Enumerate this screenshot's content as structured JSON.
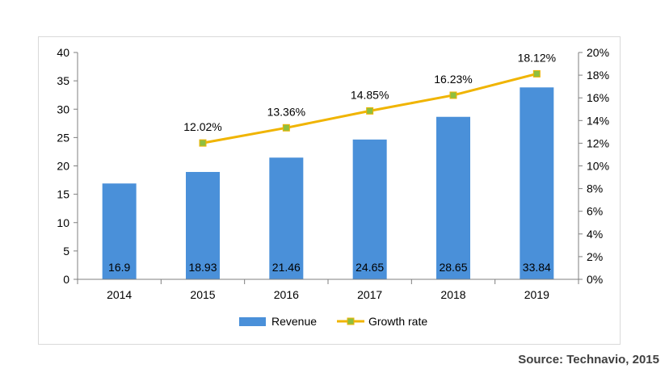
{
  "chart_data": {
    "type": "bar",
    "categories": [
      "2014",
      "2015",
      "2016",
      "2017",
      "2018",
      "2019"
    ],
    "series": [
      {
        "name": "Revenue",
        "type": "bar",
        "axis": "left",
        "color": "#4a90d9",
        "values": [
          16.9,
          18.93,
          21.46,
          24.65,
          28.65,
          33.84
        ],
        "labels": [
          "16.9",
          "18.93",
          "21.46",
          "24.65",
          "28.65",
          "33.84"
        ]
      },
      {
        "name": "Growth rate",
        "type": "line",
        "axis": "right",
        "color": "#f0b400",
        "marker_color": "#8fbf3f",
        "values": [
          null,
          12.02,
          13.36,
          14.85,
          16.23,
          18.12
        ],
        "labels": [
          "",
          "12.02%",
          "13.36%",
          "14.85%",
          "16.23%",
          "18.12%"
        ]
      }
    ],
    "y_left": {
      "min": 0,
      "max": 40,
      "step": 5,
      "ticks": [
        "0",
        "5",
        "10",
        "15",
        "20",
        "25",
        "30",
        "35",
        "40"
      ]
    },
    "y_right": {
      "min": 0,
      "max": 20,
      "step": 2,
      "ticks": [
        "0%",
        "2%",
        "4%",
        "6%",
        "8%",
        "10%",
        "12%",
        "14%",
        "16%",
        "18%",
        "20%"
      ]
    },
    "legend_position": "bottom",
    "grid": false
  },
  "source": "Source: Technavio, 2015"
}
